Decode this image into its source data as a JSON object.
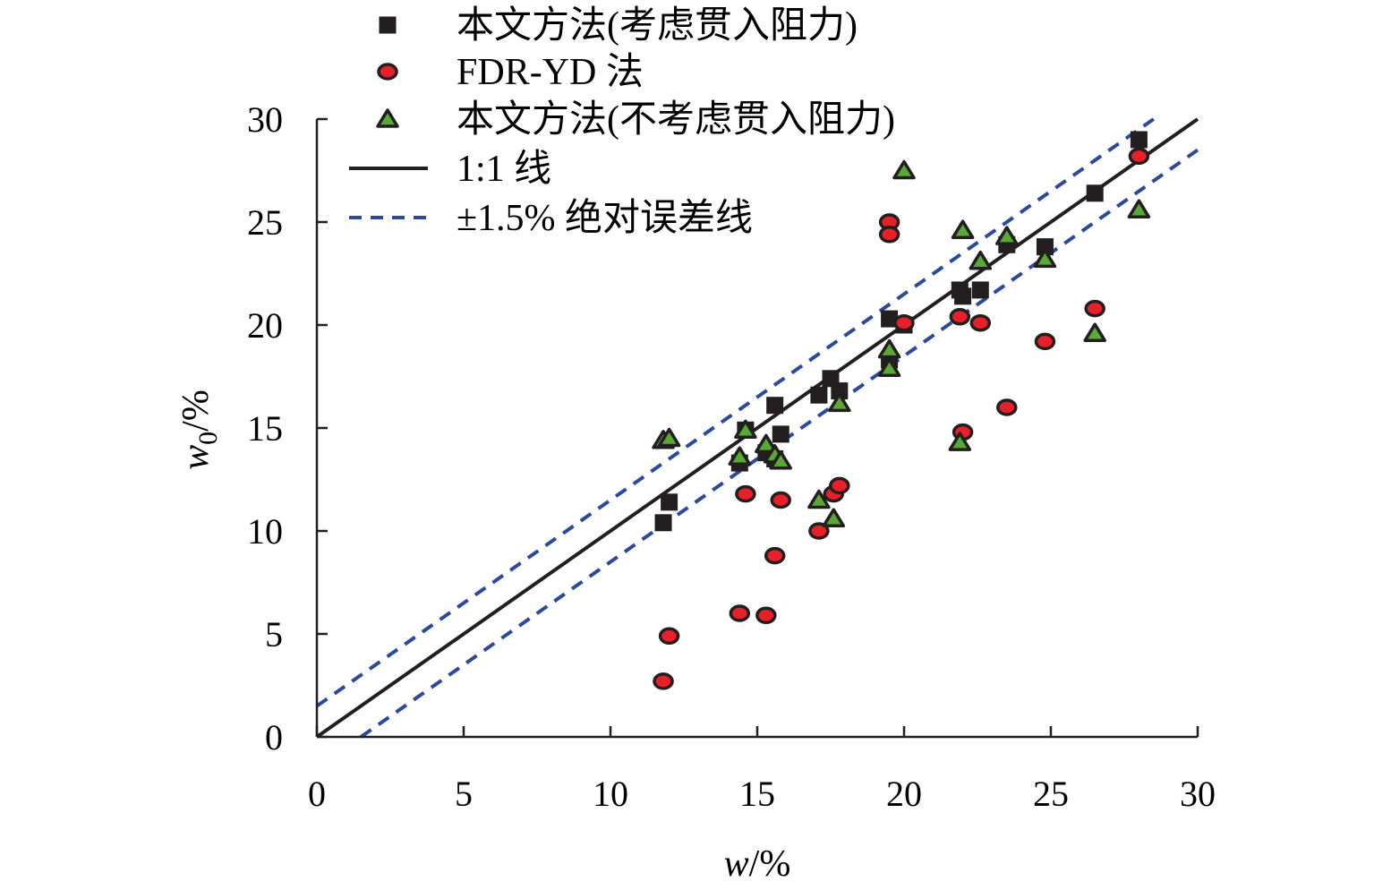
{
  "chart_data": {
    "type": "scatter",
    "xlabel": "w/%",
    "ylabel": "w0/%",
    "xlim": [
      0,
      30
    ],
    "ylim": [
      0,
      30
    ],
    "x_ticks": [
      0,
      5,
      10,
      15,
      20,
      25,
      30
    ],
    "y_ticks": [
      0,
      5,
      10,
      15,
      20,
      25,
      30
    ],
    "grid": false,
    "legend_position": "top-left",
    "series": [
      {
        "name": "本文方法(考虑贯入阻力)",
        "marker": "square",
        "color": "#231f20",
        "points": [
          [
            11.8,
            10.4
          ],
          [
            12.0,
            11.4
          ],
          [
            14.4,
            13.3
          ],
          [
            14.6,
            14.9
          ],
          [
            15.3,
            13.8
          ],
          [
            15.6,
            16.1
          ],
          [
            15.6,
            13.5
          ],
          [
            15.8,
            14.7
          ],
          [
            17.1,
            16.6
          ],
          [
            17.5,
            17.4
          ],
          [
            17.8,
            16.8
          ],
          [
            19.5,
            18.3
          ],
          [
            19.5,
            20.3
          ],
          [
            20.0,
            20.0
          ],
          [
            21.9,
            21.7
          ],
          [
            22.0,
            21.4
          ],
          [
            22.6,
            21.7
          ],
          [
            23.5,
            23.9
          ],
          [
            24.8,
            23.8
          ],
          [
            26.5,
            26.4
          ],
          [
            28.0,
            29.0
          ]
        ]
      },
      {
        "name": "FDR-YD 法",
        "marker": "circle",
        "color": "#e8202a",
        "points": [
          [
            11.8,
            2.7
          ],
          [
            12.0,
            4.9
          ],
          [
            14.4,
            6.0
          ],
          [
            14.6,
            11.8
          ],
          [
            15.3,
            5.9
          ],
          [
            15.6,
            8.8
          ],
          [
            15.8,
            11.5
          ],
          [
            17.1,
            10.0
          ],
          [
            17.6,
            11.8
          ],
          [
            17.8,
            12.2
          ],
          [
            19.5,
            25.0
          ],
          [
            19.5,
            24.4
          ],
          [
            20.0,
            20.1
          ],
          [
            21.9,
            20.4
          ],
          [
            22.0,
            14.8
          ],
          [
            22.6,
            20.1
          ],
          [
            23.5,
            16.0
          ],
          [
            24.8,
            19.2
          ],
          [
            26.5,
            20.8
          ],
          [
            28.0,
            28.2
          ]
        ]
      },
      {
        "name": "本文方法(不考虑贯入阻力)",
        "marker": "triangle",
        "color": "#5aa836",
        "points": [
          [
            11.8,
            14.4
          ],
          [
            12.0,
            14.5
          ],
          [
            14.4,
            13.6
          ],
          [
            14.6,
            14.9
          ],
          [
            15.3,
            14.2
          ],
          [
            15.6,
            13.7
          ],
          [
            15.8,
            13.4
          ],
          [
            17.1,
            11.5
          ],
          [
            17.6,
            10.6
          ],
          [
            17.8,
            16.2
          ],
          [
            19.5,
            17.9
          ],
          [
            19.5,
            18.8
          ],
          [
            20.0,
            27.5
          ],
          [
            21.9,
            14.3
          ],
          [
            22.0,
            24.6
          ],
          [
            22.6,
            23.1
          ],
          [
            23.5,
            24.3
          ],
          [
            24.8,
            23.2
          ],
          [
            26.5,
            19.6
          ],
          [
            28.0,
            25.6
          ]
        ]
      },
      {
        "name": "1:1 线",
        "type": "line",
        "style": "solid",
        "color": "#231f20",
        "points": [
          [
            0,
            0
          ],
          [
            30,
            30
          ]
        ]
      },
      {
        "name": "±1.5% 绝对误差线",
        "type": "line",
        "style": "dashed",
        "color": "#2b4a9b",
        "lines": [
          [
            [
              0,
              1.5
            ],
            [
              28.5,
              30
            ]
          ],
          [
            [
              1.5,
              0
            ],
            [
              30,
              28.5
            ]
          ]
        ]
      }
    ]
  }
}
